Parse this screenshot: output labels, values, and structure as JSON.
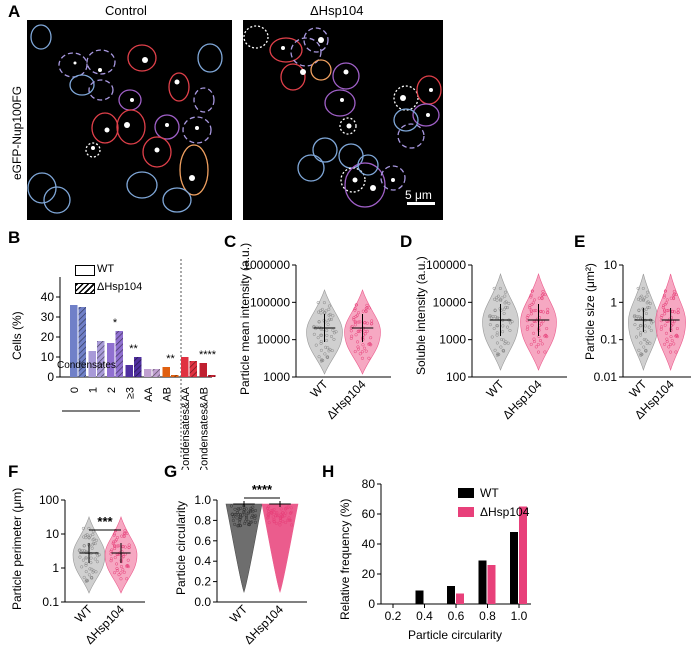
{
  "panel_labels": {
    "a": "A",
    "b": "B",
    "c": "C",
    "d": "D",
    "e": "E",
    "f": "F",
    "g": "G",
    "h": "H"
  },
  "panel_a": {
    "title_left": "Control",
    "title_right": "ΔHsp104",
    "ylabel": "eGFP-Nup100FG",
    "scale_bar": "5 μm",
    "colors": {
      "blue": "#7fa7d8",
      "purple": "#a060c8",
      "red": "#e0404a",
      "orange": "#f0a060",
      "lavender": "#a898e0",
      "white": "#ffffff"
    }
  },
  "legend": {
    "wt": "WT",
    "dhsp": "ΔHsp104"
  },
  "chart_data": [
    {
      "panel": "B",
      "type": "bar",
      "ylabel": "Cells (%)",
      "ylim": [
        0,
        50
      ],
      "yticks": [
        0,
        10,
        20,
        30,
        40
      ],
      "categories": [
        "0",
        "1",
        "2",
        "≥3",
        "AA",
        "AB",
        "Condensates&AA",
        "Condensates&AB"
      ],
      "group_label": "Condensates",
      "series": [
        {
          "name": "WT",
          "values": [
            36,
            13,
            17,
            6,
            4,
            5,
            10,
            7
          ]
        },
        {
          "name": "ΔHsp104",
          "values": [
            35,
            18,
            23,
            10,
            4,
            1,
            8,
            1
          ]
        }
      ],
      "bar_colors": [
        "#7080c8",
        "#a89ad8",
        "#9070d0",
        "#5030a0",
        "#c0a0d0",
        "#e06010",
        "#e03040",
        "#c02030"
      ],
      "significance": [
        {
          "cat": "2",
          "text": "*"
        },
        {
          "cat": "≥3",
          "text": "**"
        },
        {
          "cat": "AB",
          "text": "**"
        },
        {
          "cat": "Condensates&AB",
          "text": "****"
        }
      ]
    },
    {
      "panel": "C",
      "type": "violin",
      "ylabel": "Particle mean intensity (a.u.)",
      "scale": "log",
      "yticks": [
        "1000",
        "10000",
        "100000",
        "1000000"
      ],
      "categories": [
        "WT",
        "ΔHsp104"
      ],
      "median": [
        30000,
        30000
      ]
    },
    {
      "panel": "D",
      "type": "violin",
      "ylabel": "Soluble intensity (a.u.)",
      "scale": "log",
      "yticks": [
        "100",
        "1000",
        "10000",
        "100000"
      ],
      "categories": [
        "WT",
        "ΔHsp104"
      ],
      "median": [
        3000,
        3200
      ]
    },
    {
      "panel": "E",
      "type": "violin",
      "ylabel": "Particle size (μm²)",
      "scale": "log",
      "yticks": [
        "0.01",
        "0.1",
        "1",
        "10"
      ],
      "categories": [
        "WT",
        "ΔHsp104"
      ],
      "median": [
        0.3,
        0.28
      ]
    },
    {
      "panel": "F",
      "type": "violin",
      "ylabel": "Particle perimeter (μm)",
      "scale": "log",
      "yticks": [
        "0.1",
        "1",
        "10",
        "100"
      ],
      "categories": [
        "WT",
        "ΔHsp104"
      ],
      "median": [
        2.2,
        2.0
      ],
      "significance": "***"
    },
    {
      "panel": "G",
      "type": "violin",
      "ylabel": "Particle circularity",
      "yticks": [
        "0.0",
        "0.2",
        "0.4",
        "0.6",
        "0.8",
        "1.0"
      ],
      "categories": [
        "WT",
        "ΔHsp104"
      ],
      "median": [
        0.98,
        1.0
      ],
      "significance": "****"
    },
    {
      "panel": "H",
      "type": "bar",
      "ylabel": "Relative frequency (%)",
      "xlabel": "Particle circularity",
      "ylim": [
        0,
        80
      ],
      "yticks": [
        0,
        20,
        40,
        60,
        80
      ],
      "xticks": [
        "0.2",
        "0.4",
        "0.6",
        "0.8",
        "1.0"
      ],
      "x": [
        0.4,
        0.6,
        0.8,
        1.0
      ],
      "series": [
        {
          "name": "WT",
          "values": [
            9,
            12,
            29,
            48
          ]
        },
        {
          "name": "ΔHsp104",
          "values": [
            0,
            7,
            26,
            65
          ]
        }
      ]
    }
  ]
}
